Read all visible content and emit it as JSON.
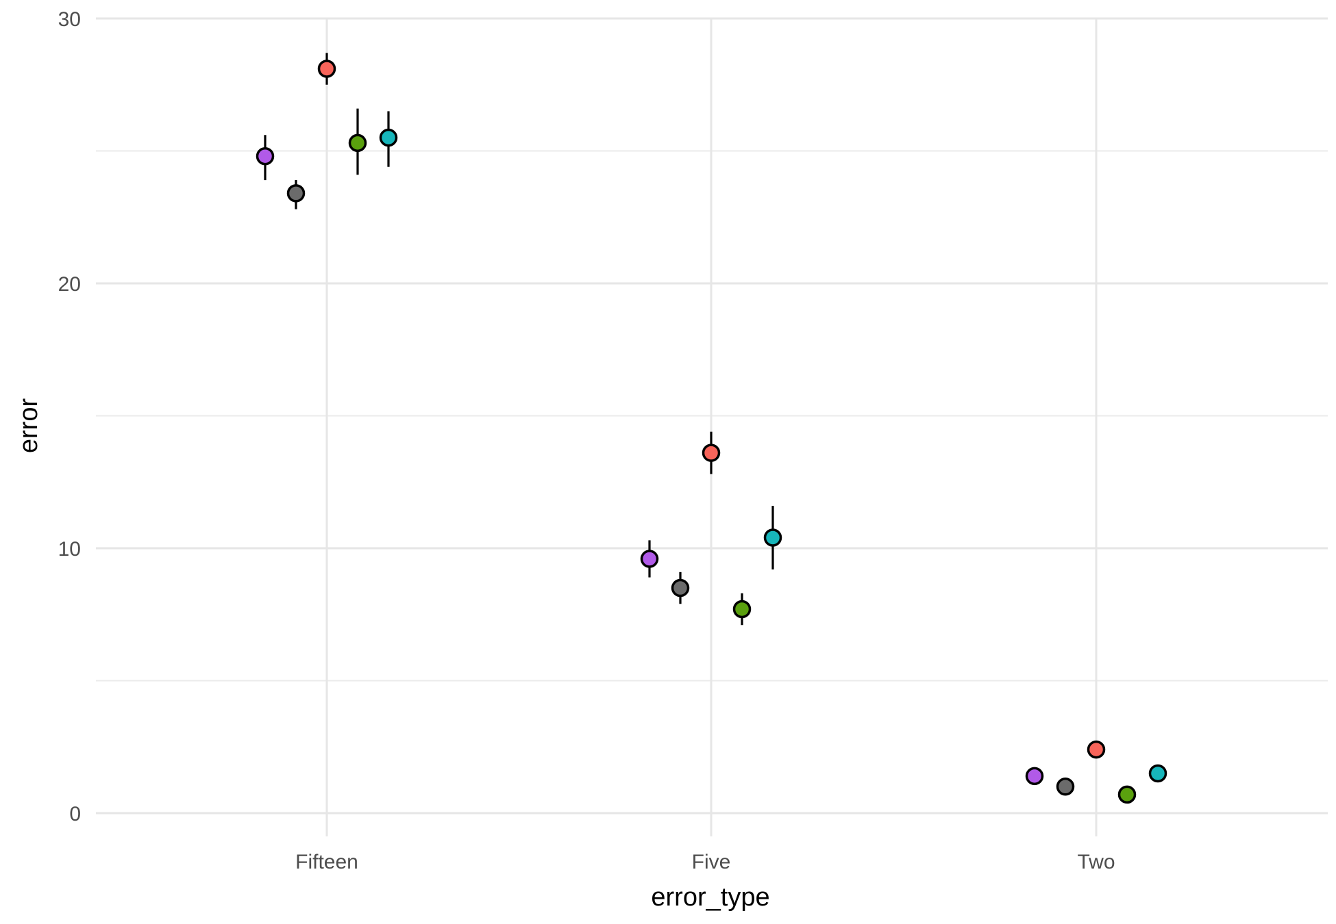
{
  "chart_data": {
    "type": "scatter",
    "xlabel": "error_type",
    "ylabel": "error",
    "categories": [
      "Fifteen",
      "Five",
      "Two"
    ],
    "ylim": [
      0,
      30
    ],
    "y_ticks": [
      0,
      10,
      20,
      30
    ],
    "grid": true,
    "legend": "none",
    "error_bars": true,
    "series": [
      {
        "color": "#b15ae8",
        "values": [
          24.8,
          9.6,
          1.4
        ],
        "lower": [
          23.9,
          8.9,
          1.4
        ],
        "upper": [
          25.6,
          10.3,
          1.4
        ]
      },
      {
        "color": "#6b6b6b",
        "values": [
          23.4,
          8.5,
          1.0
        ],
        "lower": [
          22.8,
          7.9,
          1.0
        ],
        "upper": [
          23.9,
          9.1,
          1.0
        ]
      },
      {
        "color": "#f8645a",
        "values": [
          28.1,
          13.6,
          2.4
        ],
        "lower": [
          27.5,
          12.8,
          2.4
        ],
        "upper": [
          28.7,
          14.4,
          2.4
        ]
      },
      {
        "color": "#5aa00e",
        "values": [
          25.3,
          7.7,
          0.7
        ],
        "lower": [
          24.1,
          7.1,
          0.7
        ],
        "upper": [
          26.6,
          8.3,
          0.7
        ]
      },
      {
        "color": "#17b6bb",
        "values": [
          25.5,
          10.4,
          1.5
        ],
        "lower": [
          24.4,
          9.2,
          1.5
        ],
        "upper": [
          26.5,
          11.6,
          1.5
        ]
      }
    ]
  }
}
